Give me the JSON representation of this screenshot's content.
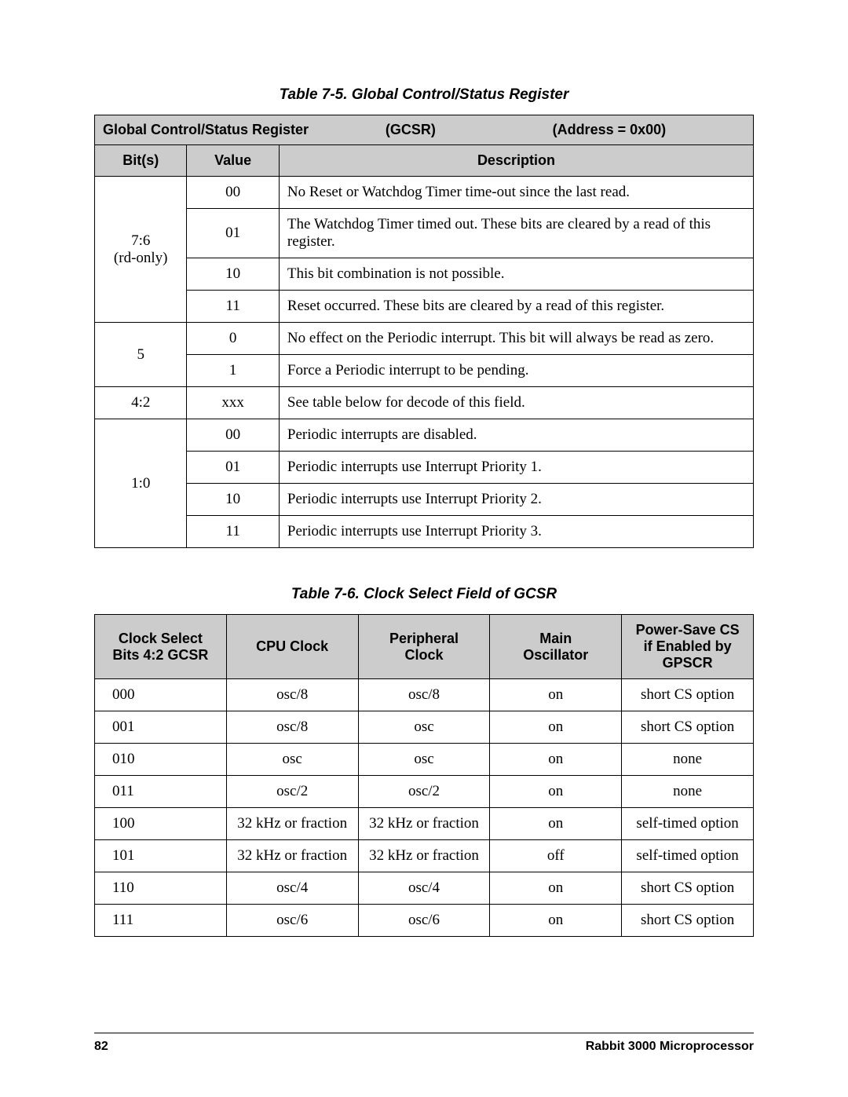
{
  "table1": {
    "caption": "Table 7-5.  Global Control/Status Register",
    "reg_name": "Global Control/Status Register",
    "reg_code": "(GCSR)",
    "reg_addr": "(Address = 0x00)",
    "head_bits": "Bit(s)",
    "head_value": "Value",
    "head_desc": "Description",
    "g1_bits_a": "7:6",
    "g1_bits_b": "(rd-only)",
    "g1_r1_val": "00",
    "g1_r1_desc": "No Reset or Watchdog Timer time-out since the last read.",
    "g1_r2_val": "01",
    "g1_r2_desc": "The Watchdog Timer timed out. These bits are cleared by a read of this register.",
    "g1_r3_val": "10",
    "g1_r3_desc": "This bit combination is not possible.",
    "g1_r4_val": "11",
    "g1_r4_desc": "Reset occurred. These bits are cleared by a read of this register.",
    "g2_bits": "5",
    "g2_r1_val": "0",
    "g2_r1_desc": "No effect on the Periodic interrupt. This bit will always be read as zero.",
    "g2_r2_val": "1",
    "g2_r2_desc": "Force a Periodic interrupt to be pending.",
    "g3_bits": "4:2",
    "g3_r1_val": "xxx",
    "g3_r1_desc": "See table below for decode of this field.",
    "g4_bits": "1:0",
    "g4_r1_val": "00",
    "g4_r1_desc": "Periodic interrupts are disabled.",
    "g4_r2_val": "01",
    "g4_r2_desc": "Periodic interrupts use Interrupt Priority 1.",
    "g4_r3_val": "10",
    "g4_r3_desc": "Periodic interrupts use Interrupt Priority 2.",
    "g4_r4_val": "11",
    "g4_r4_desc": "Periodic interrupts use Interrupt Priority 3."
  },
  "table2": {
    "caption": "Table 7-6.  Clock Select Field of GCSR",
    "h1a": "Clock Select",
    "h1b": "Bits 4:2 GCSR",
    "h2": "CPU Clock",
    "h3a": "Peripheral",
    "h3b": "Clock",
    "h4a": "Main",
    "h4b": "Oscillator",
    "h5a": "Power-Save CS",
    "h5b": "if Enabled by",
    "h5c": "GPSCR",
    "rows": [
      {
        "c1": "000",
        "c2": "osc/8",
        "c3": "osc/8",
        "c4": "on",
        "c5": "short CS option"
      },
      {
        "c1": "001",
        "c2": "osc/8",
        "c3": "osc",
        "c4": "on",
        "c5": "short CS option"
      },
      {
        "c1": "010",
        "c2": "osc",
        "c3": "osc",
        "c4": "on",
        "c5": "none"
      },
      {
        "c1": "011",
        "c2": "osc/2",
        "c3": "osc/2",
        "c4": "on",
        "c5": "none"
      },
      {
        "c1": "100",
        "c2": "32 kHz or fraction",
        "c3": "32 kHz or fraction",
        "c4": "on",
        "c5": "self-timed option"
      },
      {
        "c1": "101",
        "c2": "32 kHz or fraction",
        "c3": "32 kHz or fraction",
        "c4": "off",
        "c5": "self-timed option"
      },
      {
        "c1": "110",
        "c2": "osc/4",
        "c3": "osc/4",
        "c4": "on",
        "c5": "short CS option"
      },
      {
        "c1": "111",
        "c2": "osc/6",
        "c3": "osc/6",
        "c4": "on",
        "c5": "short CS option"
      }
    ]
  },
  "footer": {
    "page": "82",
    "title": "Rabbit 3000 Microprocessor"
  }
}
